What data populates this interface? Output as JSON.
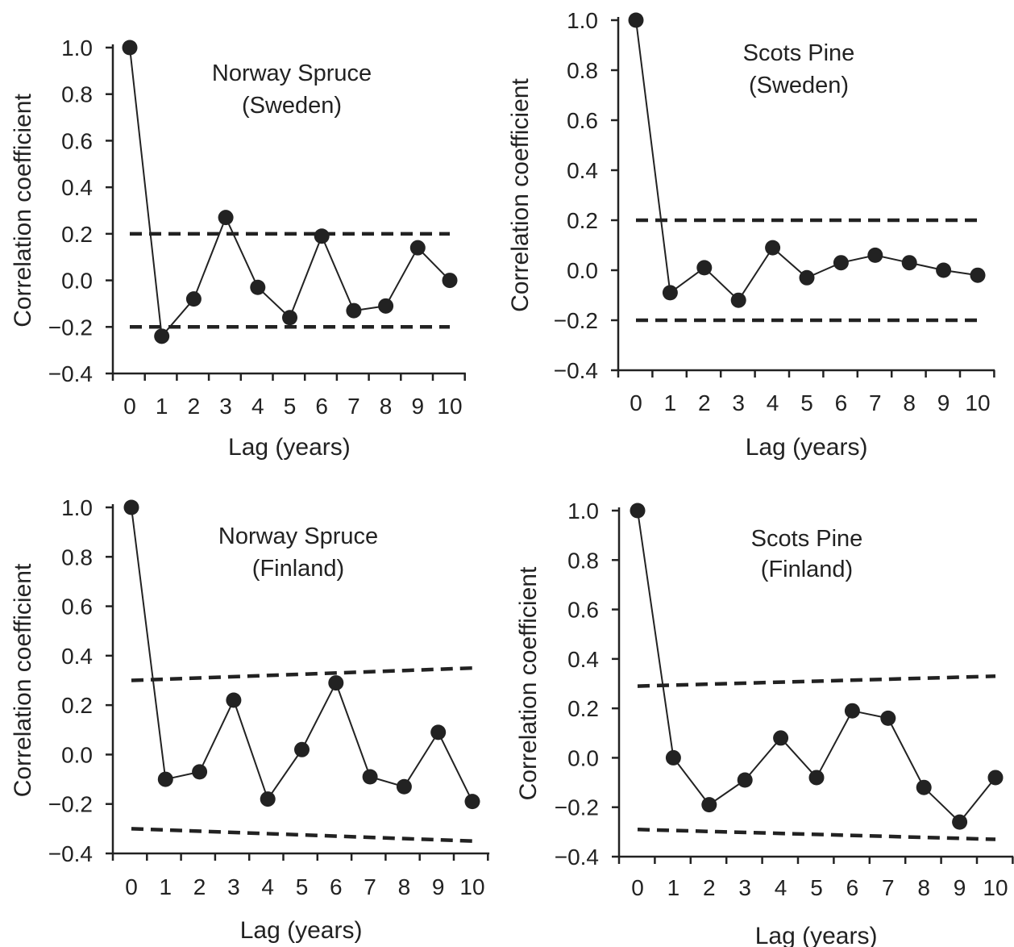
{
  "colors": {
    "ink": "#222222",
    "background": "#ffffff"
  },
  "chart_data": [
    {
      "type": "line",
      "title": "Norway Spruce",
      "subtitle": "(Sweden)",
      "xlabel": "Lag (years)",
      "ylabel": "Correlation coefficient",
      "x": [
        0,
        1,
        2,
        3,
        4,
        5,
        6,
        7,
        8,
        9,
        10
      ],
      "xlim": [
        0,
        10
      ],
      "ylim": [
        -0.4,
        1.0
      ],
      "yticks": [
        "1.0",
        "0.8",
        "0.6",
        "0.4",
        "0.2",
        "0.0",
        "−0.2",
        "−0.4"
      ],
      "series": [
        {
          "style": "solid-markers",
          "values": [
            1.0,
            -0.24,
            -0.08,
            0.27,
            -0.03,
            -0.16,
            0.19,
            -0.13,
            -0.11,
            0.14,
            0.0
          ]
        },
        {
          "style": "dashed",
          "values": [
            0.2,
            0.2,
            0.2,
            0.2,
            0.2,
            0.2,
            0.2,
            0.2,
            0.2,
            0.2,
            0.2
          ]
        },
        {
          "style": "dashed",
          "values": [
            -0.2,
            -0.2,
            -0.2,
            -0.2,
            -0.2,
            -0.2,
            -0.2,
            -0.2,
            -0.2,
            -0.2,
            -0.2
          ]
        }
      ],
      "grid": false
    },
    {
      "type": "line",
      "title": "Scots Pine",
      "subtitle": "(Sweden)",
      "xlabel": "Lag (years)",
      "ylabel": "Correlation coefficient",
      "x": [
        0,
        1,
        2,
        3,
        4,
        5,
        6,
        7,
        8,
        9,
        10
      ],
      "xlim": [
        0,
        10
      ],
      "ylim": [
        -0.4,
        1.0
      ],
      "yticks": [
        "1.0",
        "0.8",
        "0.6",
        "0.4",
        "0.2",
        "0.0",
        "−0.2",
        "−0.4"
      ],
      "series": [
        {
          "style": "solid-markers",
          "values": [
            1.0,
            -0.09,
            0.01,
            -0.12,
            0.09,
            -0.03,
            0.03,
            0.06,
            0.03,
            0.0,
            -0.02
          ]
        },
        {
          "style": "dashed",
          "values": [
            0.2,
            0.2,
            0.2,
            0.2,
            0.2,
            0.2,
            0.2,
            0.2,
            0.2,
            0.2,
            0.2
          ]
        },
        {
          "style": "dashed",
          "values": [
            -0.2,
            -0.2,
            -0.2,
            -0.2,
            -0.2,
            -0.2,
            -0.2,
            -0.2,
            -0.2,
            -0.2,
            -0.2
          ]
        }
      ],
      "grid": false
    },
    {
      "type": "line",
      "title": "Norway Spruce",
      "subtitle": "(Finland)",
      "xlabel": "Lag (years)",
      "ylabel": "Correlation coefficient",
      "x": [
        0,
        1,
        2,
        3,
        4,
        5,
        6,
        7,
        8,
        9,
        10
      ],
      "xlim": [
        0,
        10
      ],
      "ylim": [
        -0.4,
        1.0
      ],
      "yticks": [
        "1.0",
        "0.8",
        "0.6",
        "0.4",
        "0.2",
        "0.0",
        "−0.2",
        "−0.4"
      ],
      "series": [
        {
          "style": "solid-markers",
          "values": [
            1.0,
            -0.1,
            -0.07,
            0.22,
            -0.18,
            0.02,
            0.29,
            -0.09,
            -0.13,
            0.09,
            -0.19
          ]
        },
        {
          "style": "dashed",
          "values": [
            0.3,
            0.305,
            0.31,
            0.315,
            0.32,
            0.325,
            0.33,
            0.335,
            0.34,
            0.345,
            0.35
          ]
        },
        {
          "style": "dashed",
          "values": [
            -0.3,
            -0.305,
            -0.31,
            -0.315,
            -0.32,
            -0.325,
            -0.33,
            -0.335,
            -0.34,
            -0.345,
            -0.35
          ]
        }
      ],
      "grid": false
    },
    {
      "type": "line",
      "title": "Scots Pine",
      "subtitle": "(Finland)",
      "xlabel": "Lag (years)",
      "ylabel": "Correlation coefficient",
      "x": [
        0,
        1,
        2,
        3,
        4,
        5,
        6,
        7,
        8,
        9,
        10
      ],
      "xlim": [
        0,
        10
      ],
      "ylim": [
        -0.4,
        1.0
      ],
      "yticks": [
        "1.0",
        "0.8",
        "0.6",
        "0.4",
        "0.2",
        "0.0",
        "−0.2",
        "−0.4"
      ],
      "series": [
        {
          "style": "solid-markers",
          "values": [
            1.0,
            0.0,
            -0.19,
            -0.09,
            0.08,
            -0.08,
            0.19,
            0.16,
            -0.12,
            -0.26,
            -0.08
          ]
        },
        {
          "style": "dashed",
          "values": [
            0.29,
            0.294,
            0.298,
            0.302,
            0.306,
            0.31,
            0.314,
            0.318,
            0.322,
            0.326,
            0.33
          ]
        },
        {
          "style": "dashed",
          "values": [
            -0.29,
            -0.294,
            -0.298,
            -0.302,
            -0.306,
            -0.31,
            -0.314,
            -0.318,
            -0.322,
            -0.326,
            -0.33
          ]
        }
      ],
      "grid": false
    }
  ]
}
